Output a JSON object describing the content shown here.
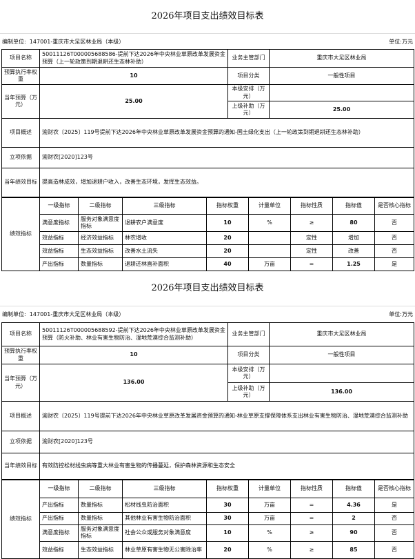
{
  "labels": {
    "org": "编制单位:",
    "unit": "单位:万元",
    "project_name": "项目名称",
    "dept": "业务主管部门",
    "exec_weight": "预算执行率权重",
    "category": "项目分类",
    "budget": "当年预算（万元）",
    "local": "本级安排（万元）",
    "upper": "上级补助（万元）",
    "overview": "项目概述",
    "basis": "立项依据",
    "goal": "当年绩效目标",
    "indicators": "绩效指标",
    "ind_headers": [
      "一级指标",
      "二级指标",
      "三级指标",
      "指标权重",
      "计量单位",
      "指标性质",
      "指标值",
      "是否核心指标"
    ]
  },
  "docs": [
    {
      "title": "2026年项目支出绩效目标表",
      "org": "147001-重庆市大足区林业局（本级）",
      "project_name": "50011126T000005688586-提前下达2026年中央林业草原改革发展资金预算（上一轮政策到期退耕还生态林补助）",
      "dept": "重庆市大足区林业局",
      "exec_weight": "10",
      "category": "一般性项目",
      "budget": "25.00",
      "local": "",
      "upper": "25.00",
      "overview": "渝财农〔2025〕119号提前下达2026年中央林业草原改革发展资金预算的通知-国土绿化支出（上一轮政策到期退耕还生态林补助）",
      "basis": "渝财农[2020]123号",
      "goal": "提高造林成效，增加退耕户收入，改善生态环境，发挥生态效益。",
      "rows": [
        [
          "满意度指标",
          "服务对象满意度指标",
          "退耕农户满意度",
          "10",
          "%",
          "≥",
          "80",
          "否"
        ],
        [
          "效益指标",
          "经济效益指标",
          "林农增收",
          "20",
          "",
          "定性",
          "增加",
          "否"
        ],
        [
          "效益指标",
          "生态效益指标",
          "改善水土流失",
          "20",
          "",
          "定性",
          "改善",
          "否"
        ],
        [
          "产出指标",
          "数量指标",
          "退耕还林直补面积",
          "40",
          "万亩",
          "=",
          "1.25",
          "是"
        ]
      ]
    },
    {
      "title": "2026年项目支出绩效目标表",
      "org": "147001-重庆市大足区林业局（本级）",
      "project_name": "50011126T000005688592-提前下达2026年中央林业草原改革发展资金预算（防火补助、林业有害生物防治、湿地荒漠综合监测补助）",
      "dept": "重庆市大足区林业局",
      "exec_weight": "10",
      "category": "一般性项目",
      "budget": "136.00",
      "local": "",
      "upper": "136.00",
      "overview": "渝财农〔2025〕119号提前下达2026年中央林业草原改革发展资金预算的通知-林业草原支撑保障体系支出林业有害生物防治、湿地荒漠综合监测补助",
      "basis": "渝财农[2020]123号",
      "goal": "有效防控松材线虫病等重大林业有害生物的传播蔓延，保护森林资源和生态安全",
      "rows": [
        [
          "产出指标",
          "数量指标",
          "松材线虫防治面积",
          "30",
          "万亩",
          "=",
          "4.36",
          "是"
        ],
        [
          "产出指标",
          "数量指标",
          "其他林业有害生物防治面积",
          "30",
          "万亩",
          "=",
          "2",
          "否"
        ],
        [
          "满意度指标",
          "服务对象满意度指标",
          "社会公众或服务对象满意度",
          "10",
          "%",
          "≥",
          "90",
          "否"
        ],
        [
          "效益指标",
          "生态效益指标",
          "林业草原有害生物无公害除治率",
          "20",
          "%",
          "≥",
          "85",
          "否"
        ]
      ]
    }
  ]
}
